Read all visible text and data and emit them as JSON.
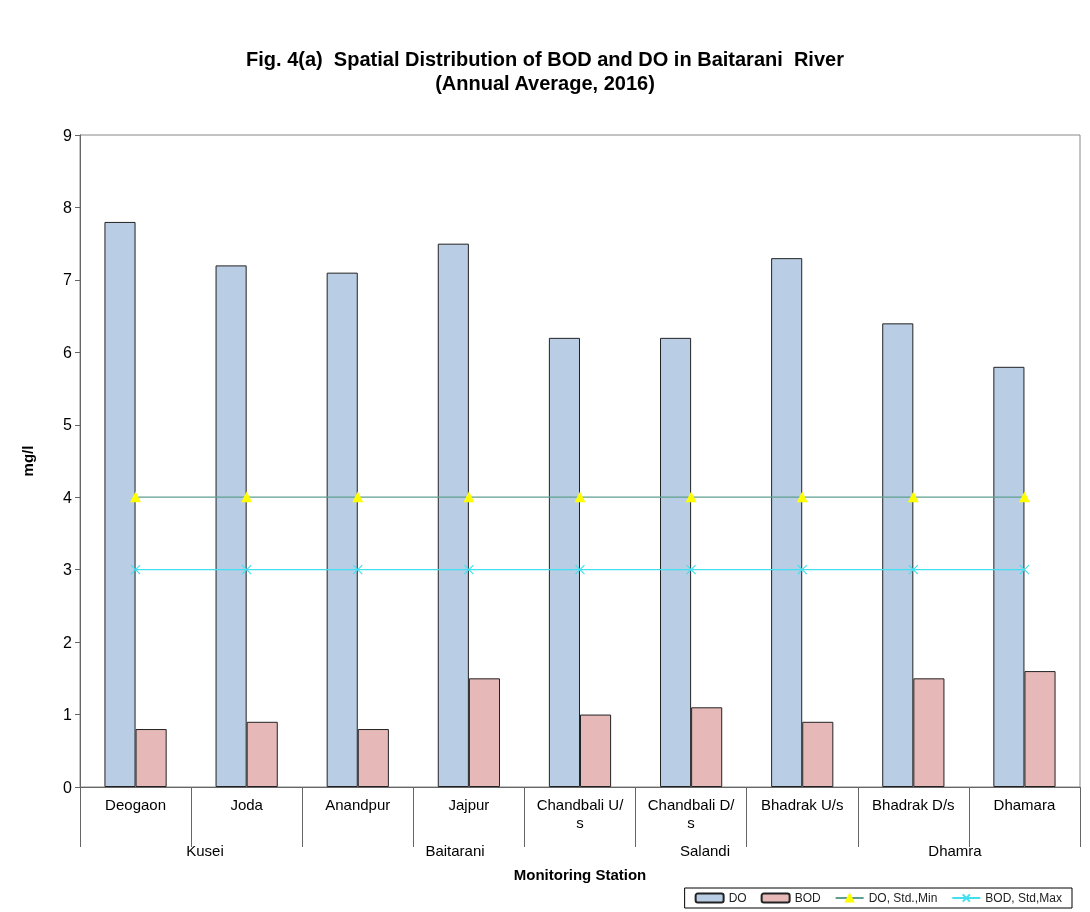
{
  "chart_data": {
    "type": "bar",
    "title": "Fig. 4(a)  Spatial Distribution of BOD and DO in Baitarani  River",
    "subtitle": "(Annual Average, 2016)",
    "xlabel": "Monitoring Station",
    "ylabel": "mg/l",
    "categories": [
      "Deogaon",
      "Joda",
      "Anandpur",
      "Jajpur",
      "Chandbali U/s",
      "Chandbali D/s",
      "Bhadrak U/s",
      "Bhadrak D/s",
      "Dhamara"
    ],
    "series": [
      {
        "name": "DO",
        "color": "#b9cde5",
        "values": [
          7.8,
          7.2,
          7.1,
          7.5,
          6.2,
          6.2,
          7.3,
          6.4,
          5.8
        ]
      },
      {
        "name": "BOD",
        "color": "#e6b9b8",
        "values": [
          0.8,
          0.9,
          0.8,
          1.5,
          1.0,
          1.1,
          0.9,
          1.5,
          1.6
        ]
      },
      {
        "name": "DO, Std.,Min",
        "type": "line",
        "color": "#5f9f8f",
        "marker": "triangle",
        "values": [
          4,
          4,
          4,
          4,
          4,
          4,
          4,
          4,
          4
        ]
      },
      {
        "name": "BOD, Std,Max",
        "type": "line",
        "color": "#40e0f0",
        "marker": "cross",
        "values": [
          3,
          3,
          3,
          3,
          3,
          3,
          3,
          3,
          3
        ]
      }
    ],
    "annotations": [
      "Kusei",
      "Baitarani",
      "Salandi",
      "Dhamra"
    ],
    "ylim": [
      0,
      9
    ],
    "yticks": [
      0,
      1,
      2,
      3,
      4,
      5,
      6,
      7,
      8,
      9
    ],
    "grid": false,
    "legend": "bottom right"
  }
}
